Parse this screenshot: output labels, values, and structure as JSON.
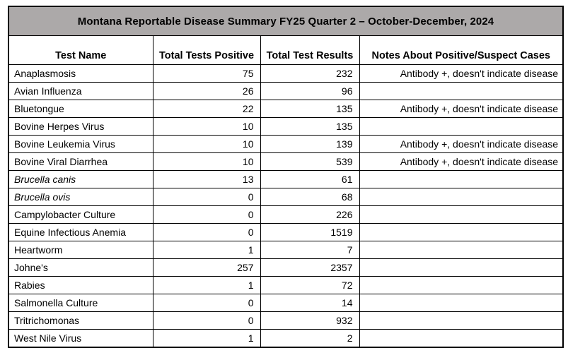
{
  "table": {
    "title": "Montana Reportable Disease Summary FY25 Quarter 2 – October-December, 2024",
    "columns": [
      "Test Name",
      "Total Tests Positive",
      "Total Test Results",
      "Notes About Positive/Suspect Cases"
    ],
    "rows": [
      {
        "test": "Anaplasmosis",
        "positive": 75,
        "results": 232,
        "notes": "Antibody +, doesn't indicate disease",
        "italic": false
      },
      {
        "test": "Avian Influenza",
        "positive": 26,
        "results": 96,
        "notes": "",
        "italic": false
      },
      {
        "test": "Bluetongue",
        "positive": 22,
        "results": 135,
        "notes": "Antibody +, doesn't indicate disease",
        "italic": false
      },
      {
        "test": "Bovine Herpes Virus",
        "positive": 10,
        "results": 135,
        "notes": "",
        "italic": false
      },
      {
        "test": "Bovine Leukemia Virus",
        "positive": 10,
        "results": 139,
        "notes": "Antibody +, doesn't indicate disease",
        "italic": false
      },
      {
        "test": "Bovine Viral Diarrhea",
        "positive": 10,
        "results": 539,
        "notes": "Antibody +, doesn't indicate disease",
        "italic": false
      },
      {
        "test": "Brucella canis",
        "positive": 13,
        "results": 61,
        "notes": "",
        "italic": true
      },
      {
        "test": "Brucella ovis",
        "positive": 0,
        "results": 68,
        "notes": "",
        "italic": true
      },
      {
        "test": "Campylobacter Culture",
        "positive": 0,
        "results": 226,
        "notes": "",
        "italic": false
      },
      {
        "test": "Equine Infectious Anemia",
        "positive": 0,
        "results": 1519,
        "notes": "",
        "italic": false
      },
      {
        "test": "Heartworm",
        "positive": 1,
        "results": 7,
        "notes": "",
        "italic": false
      },
      {
        "test": "Johne's",
        "positive": 257,
        "results": 2357,
        "notes": "",
        "italic": false
      },
      {
        "test": "Rabies",
        "positive": 1,
        "results": 72,
        "notes": "",
        "italic": false
      },
      {
        "test": "Salmonella Culture",
        "positive": 0,
        "results": 14,
        "notes": "",
        "italic": false
      },
      {
        "test": "Tritrichomonas",
        "positive": 0,
        "results": 932,
        "notes": "",
        "italic": false
      },
      {
        "test": "West Nile Virus",
        "positive": 1,
        "results": 2,
        "notes": "",
        "italic": false
      }
    ],
    "colors": {
      "title_background": "#ACA9A9",
      "border": "#000000",
      "text": "#000000"
    }
  }
}
